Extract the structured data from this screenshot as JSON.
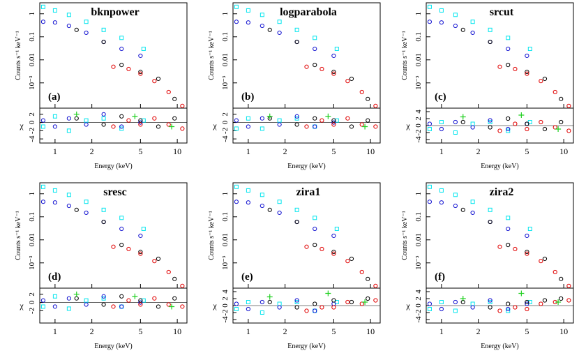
{
  "chart_data": [
    {
      "type": "scatter",
      "title": "bknpower",
      "panel_label": "(a)",
      "xlabel": "Energy (keV)",
      "ylabel": "Counts s⁻¹ keV⁻¹",
      "residual_label": "χ",
      "log_x": true,
      "log_y": true,
      "xlim": [
        0.75,
        12
      ],
      "xticks": [
        1,
        2,
        5,
        10
      ],
      "ylim": [
        8e-05,
        3
      ],
      "yticks": [
        1,
        0.1,
        0.01,
        {
          "value": 0.001,
          "label": "10⁻³"
        }
      ],
      "rlim": [
        -5,
        3.5
      ],
      "rticks": [
        -4,
        -2,
        0,
        2
      ],
      "series": [
        {
          "color": "#00e5ee",
          "marker": "square",
          "x": [
            0.8,
            1.0,
            1.3,
            1.8,
            2.5,
            3.5,
            5.3
          ],
          "values": [
            2,
            1.4,
            0.9,
            0.45,
            0.2,
            0.09,
            0.03
          ],
          "residuals": [
            -1,
            1.5,
            -2,
            0.5,
            1,
            -1.5,
            0.5
          ]
        },
        {
          "color": "#1010d0",
          "marker": "circle",
          "x": [
            0.8,
            1.0,
            1.3,
            1.8,
            2.5,
            3.5,
            5
          ],
          "values": [
            0.45,
            0.42,
            0.3,
            0.15,
            0.06,
            0.03,
            0.015
          ],
          "residuals": [
            0.5,
            -1,
            1,
            -0.5,
            2,
            -1,
            0
          ]
        },
        {
          "color": "#000000",
          "marker": "circle",
          "x": [
            1.5,
            2.5,
            3.5,
            5,
            7,
            9.5
          ],
          "values": [
            0.2,
            0.06,
            0.006,
            0.003,
            0.0015,
            0.0002
          ],
          "residuals": [
            1,
            -0.5,
            1.5,
            0.5,
            -1,
            1
          ]
        },
        {
          "color": "#e00000",
          "marker": "circle",
          "x": [
            3,
            4,
            5,
            6.5,
            8.5,
            11
          ],
          "values": [
            0.005,
            0.004,
            0.0025,
            0.0012,
            0.0004,
            0.0001
          ],
          "residuals": [
            -1,
            0.5,
            -0.5,
            1,
            -0.5,
            -1.5
          ]
        },
        {
          "color": "#20d020",
          "marker": "cross",
          "x": [
            1.5,
            4.5,
            9
          ],
          "residuals": [
            2,
            1.5,
            -1
          ]
        }
      ]
    },
    {
      "type": "scatter",
      "title": "logparabola",
      "panel_label": "(b)",
      "xlabel": "Energy (keV)",
      "ylabel": "Counts s⁻¹ keV⁻¹",
      "residual_label": "χ",
      "log_x": true,
      "log_y": true,
      "xlim": [
        0.75,
        12
      ],
      "xticks": [
        1,
        2,
        5,
        10
      ],
      "ylim": [
        8e-05,
        3
      ],
      "yticks": [
        1,
        0.1,
        0.01,
        {
          "value": 0.001,
          "label": "10⁻³"
        }
      ],
      "rlim": [
        -5,
        3.5
      ],
      "rticks": [
        -4,
        -2,
        0,
        2
      ],
      "series": [
        {
          "color": "#00e5ee",
          "marker": "square",
          "x": [
            0.8,
            1.0,
            1.3,
            1.8,
            2.5,
            3.5,
            5.3
          ],
          "values": [
            2,
            1.4,
            0.9,
            0.45,
            0.2,
            0.09,
            0.03
          ],
          "residuals": [
            -1.5,
            1,
            -1.5,
            0.5,
            1,
            -1,
            0.5
          ]
        },
        {
          "color": "#1010d0",
          "marker": "circle",
          "x": [
            0.8,
            1.0,
            1.3,
            1.8,
            2.5,
            3.5,
            5
          ],
          "values": [
            0.45,
            0.42,
            0.3,
            0.15,
            0.06,
            0.03,
            0.015
          ],
          "residuals": [
            0.5,
            -1,
            1,
            -0.5,
            1.5,
            -1,
            0
          ]
        },
        {
          "color": "#000000",
          "marker": "circle",
          "x": [
            1.5,
            2.5,
            3.5,
            5,
            7,
            9.5
          ],
          "values": [
            0.2,
            0.06,
            0.006,
            0.003,
            0.0015,
            0.0002
          ],
          "residuals": [
            1,
            -0.5,
            1,
            0.5,
            -1,
            0.5
          ]
        },
        {
          "color": "#e00000",
          "marker": "circle",
          "x": [
            3,
            4,
            5,
            6.5,
            8.5,
            11
          ],
          "values": [
            0.005,
            0.004,
            0.0025,
            0.0012,
            0.0004,
            0.0001
          ],
          "residuals": [
            -1,
            0.5,
            -0.5,
            1,
            -0.5,
            -1
          ]
        },
        {
          "color": "#20d020",
          "marker": "cross",
          "x": [
            1.5,
            4.5,
            9
          ],
          "residuals": [
            1.5,
            1.5,
            -1
          ]
        }
      ]
    },
    {
      "type": "scatter",
      "title": "srcut",
      "panel_label": "(c)",
      "xlabel": "Energy (keV)",
      "ylabel": "Counts s⁻¹ keV⁻¹",
      "residual_label": "χ",
      "log_x": true,
      "log_y": true,
      "xlim": [
        0.75,
        12
      ],
      "xticks": [
        1,
        2,
        5,
        10
      ],
      "ylim": [
        8e-05,
        3
      ],
      "yticks": [
        1,
        0.1,
        0.01,
        {
          "value": 0.001,
          "label": "10⁻³"
        }
      ],
      "rlim": [
        -5,
        5
      ],
      "rticks": [
        -4,
        -2,
        0,
        2,
        4
      ],
      "series": [
        {
          "color": "#00e5ee",
          "marker": "square",
          "x": [
            0.8,
            1.0,
            1.3,
            1.8,
            2.5,
            3.5,
            5.3
          ],
          "values": [
            2,
            1.4,
            0.9,
            0.45,
            0.2,
            0.09,
            0.03
          ],
          "residuals": [
            -1,
            1,
            -2,
            0.5,
            1,
            -1.5,
            1
          ]
        },
        {
          "color": "#1010d0",
          "marker": "circle",
          "x": [
            0.8,
            1.0,
            1.3,
            1.8,
            2.5,
            3.5,
            5
          ],
          "values": [
            0.45,
            0.42,
            0.3,
            0.15,
            0.06,
            0.03,
            0.015
          ],
          "residuals": [
            0.5,
            -1,
            1,
            -0.5,
            1.5,
            -1,
            0.5
          ]
        },
        {
          "color": "#000000",
          "marker": "circle",
          "x": [
            1.5,
            2.5,
            3.5,
            5,
            7,
            9.5
          ],
          "values": [
            0.2,
            0.06,
            0.006,
            0.003,
            0.0015,
            0.0002
          ],
          "residuals": [
            1,
            -0.5,
            2,
            0.5,
            -1,
            1
          ]
        },
        {
          "color": "#e00000",
          "marker": "circle",
          "x": [
            3,
            4,
            5,
            6.5,
            8.5,
            11
          ],
          "values": [
            0.005,
            0.004,
            0.0025,
            0.0012,
            0.0004,
            0.0001
          ],
          "residuals": [
            -1.5,
            0.5,
            -1,
            1,
            -0.5,
            -1.5
          ]
        },
        {
          "color": "#20d020",
          "marker": "cross",
          "x": [
            1.5,
            4.5,
            9
          ],
          "residuals": [
            2.5,
            3,
            -1
          ]
        }
      ]
    },
    {
      "type": "scatter",
      "title": "sresc",
      "panel_label": "(d)",
      "xlabel": "Energy (keV)",
      "ylabel": "Counts s⁻¹ keV⁻¹",
      "residual_label": "χ",
      "log_x": true,
      "log_y": true,
      "xlim": [
        0.75,
        12
      ],
      "xticks": [
        1,
        2,
        5,
        10
      ],
      "ylim": [
        8e-05,
        3
      ],
      "yticks": [
        1,
        0.1,
        0.01,
        {
          "value": 0.001,
          "label": "10⁻³"
        }
      ],
      "rlim": [
        -5,
        3.5
      ],
      "rticks": [
        -2,
        0,
        2
      ],
      "series": [
        {
          "color": "#00e5ee",
          "marker": "square",
          "x": [
            0.8,
            1.0,
            1.3,
            1.8,
            2.5,
            3.5,
            5.3
          ],
          "values": [
            2,
            1.4,
            0.9,
            0.45,
            0.2,
            0.09,
            0.03
          ],
          "residuals": [
            -1,
            1.5,
            -1.5,
            0.5,
            1,
            -1,
            0.5
          ]
        },
        {
          "color": "#1010d0",
          "marker": "circle",
          "x": [
            0.8,
            1.0,
            1.3,
            1.8,
            2.5,
            3.5,
            5
          ],
          "values": [
            0.45,
            0.42,
            0.3,
            0.15,
            0.06,
            0.03,
            0.015
          ],
          "residuals": [
            0.5,
            -1,
            1,
            -0.5,
            1.5,
            -1,
            0
          ]
        },
        {
          "color": "#000000",
          "marker": "circle",
          "x": [
            1.5,
            2.5,
            3.5,
            5,
            7,
            9.5
          ],
          "values": [
            0.2,
            0.06,
            0.006,
            0.003,
            0.0015,
            0.0002
          ],
          "residuals": [
            1,
            -0.5,
            1.5,
            0.5,
            -1,
            1
          ]
        },
        {
          "color": "#e00000",
          "marker": "circle",
          "x": [
            3,
            4,
            5,
            6.5,
            8.5,
            11
          ],
          "values": [
            0.005,
            0.004,
            0.0025,
            0.0012,
            0.0004,
            0.0001
          ],
          "residuals": [
            -1,
            0.5,
            -0.5,
            1,
            -0.5,
            -1
          ]
        },
        {
          "color": "#20d020",
          "marker": "cross",
          "x": [
            1.5,
            4.5,
            9
          ],
          "residuals": [
            2,
            1.5,
            -1
          ]
        }
      ]
    },
    {
      "type": "scatter",
      "title": "zira1",
      "panel_label": "(e)",
      "xlabel": "Energy (keV)",
      "ylabel": "Counts s⁻¹ keV⁻¹",
      "residual_label": "χ",
      "log_x": true,
      "log_y": true,
      "xlim": [
        0.75,
        12
      ],
      "xticks": [
        1,
        2,
        5,
        10
      ],
      "ylim": [
        8e-05,
        3
      ],
      "yticks": [
        1,
        0.1,
        0.01,
        {
          "value": 0.001,
          "label": "10⁻³"
        }
      ],
      "rlim": [
        -5,
        5
      ],
      "rticks": [
        -4,
        -2,
        0,
        2,
        4
      ],
      "series": [
        {
          "color": "#00e5ee",
          "marker": "square",
          "x": [
            0.8,
            1.0,
            1.3,
            1.8,
            2.5,
            3.5,
            5.3
          ],
          "values": [
            2,
            1.4,
            0.9,
            0.45,
            0.2,
            0.09,
            0.03
          ],
          "residuals": [
            -1,
            1,
            -2,
            0.5,
            1,
            -1.5,
            1
          ]
        },
        {
          "color": "#1010d0",
          "marker": "circle",
          "x": [
            0.8,
            1.0,
            1.3,
            1.8,
            2.5,
            3.5,
            5
          ],
          "values": [
            0.45,
            0.42,
            0.3,
            0.15,
            0.06,
            0.03,
            0.015
          ],
          "residuals": [
            0.5,
            -1,
            1,
            -0.5,
            1.5,
            -1.5,
            0.5
          ]
        },
        {
          "color": "#000000",
          "marker": "circle",
          "x": [
            1.5,
            2.5,
            3.5,
            5,
            7,
            9.5
          ],
          "values": [
            0.2,
            0.06,
            0.006,
            0.003,
            0.0015,
            0.0002
          ],
          "residuals": [
            1,
            -0.5,
            0.5,
            1.5,
            1,
            2
          ]
        },
        {
          "color": "#e00000",
          "marker": "circle",
          "x": [
            3,
            4,
            5,
            6.5,
            8.5,
            11
          ],
          "values": [
            0.005,
            0.004,
            0.0025,
            0.0012,
            0.0004,
            0.0001
          ],
          "residuals": [
            -1.5,
            -0.5,
            -0.5,
            1,
            0.5,
            1.5
          ]
        },
        {
          "color": "#20d020",
          "marker": "cross",
          "x": [
            1.5,
            4.5,
            9
          ],
          "residuals": [
            2.5,
            3.5,
            1
          ]
        }
      ]
    },
    {
      "type": "scatter",
      "title": "zira2",
      "panel_label": "(f)",
      "xlabel": "Energy (keV)",
      "ylabel": "Counts s⁻¹ keV⁻¹",
      "residual_label": "χ",
      "log_x": true,
      "log_y": true,
      "xlim": [
        0.75,
        12
      ],
      "xticks": [
        1,
        2,
        5,
        10
      ],
      "ylim": [
        8e-05,
        3
      ],
      "yticks": [
        1,
        0.1,
        0.01,
        {
          "value": 0.001,
          "label": "10⁻³"
        }
      ],
      "rlim": [
        -5,
        5
      ],
      "rticks": [
        -4,
        -2,
        0,
        2,
        4
      ],
      "series": [
        {
          "color": "#00e5ee",
          "marker": "square",
          "x": [
            0.8,
            1.0,
            1.3,
            1.8,
            2.5,
            3.5,
            5.3
          ],
          "values": [
            2,
            1.4,
            0.9,
            0.45,
            0.2,
            0.09,
            0.03
          ],
          "residuals": [
            -1,
            1,
            -1.5,
            0.5,
            1,
            -1.5,
            1
          ]
        },
        {
          "color": "#1010d0",
          "marker": "circle",
          "x": [
            0.8,
            1.0,
            1.3,
            1.8,
            2.5,
            3.5,
            5
          ],
          "values": [
            0.45,
            0.42,
            0.3,
            0.15,
            0.06,
            0.03,
            0.015
          ],
          "residuals": [
            0.5,
            -1,
            1,
            -0.5,
            1.5,
            -1,
            0.5
          ]
        },
        {
          "color": "#000000",
          "marker": "circle",
          "x": [
            1.5,
            2.5,
            3.5,
            5,
            7,
            9.5
          ],
          "values": [
            0.2,
            0.06,
            0.006,
            0.003,
            0.0015,
            0.0002
          ],
          "residuals": [
            1,
            -0.5,
            0.5,
            1,
            1.5,
            2
          ]
        },
        {
          "color": "#e00000",
          "marker": "circle",
          "x": [
            3,
            4,
            5,
            6.5,
            8.5,
            11
          ],
          "values": [
            0.005,
            0.004,
            0.0025,
            0.0012,
            0.0004,
            0.0001
          ],
          "residuals": [
            -1.5,
            -0.5,
            -1,
            0.5,
            1,
            1.5
          ]
        },
        {
          "color": "#20d020",
          "marker": "cross",
          "x": [
            1.5,
            4.5,
            9
          ],
          "residuals": [
            2,
            3.5,
            1
          ]
        }
      ]
    }
  ]
}
